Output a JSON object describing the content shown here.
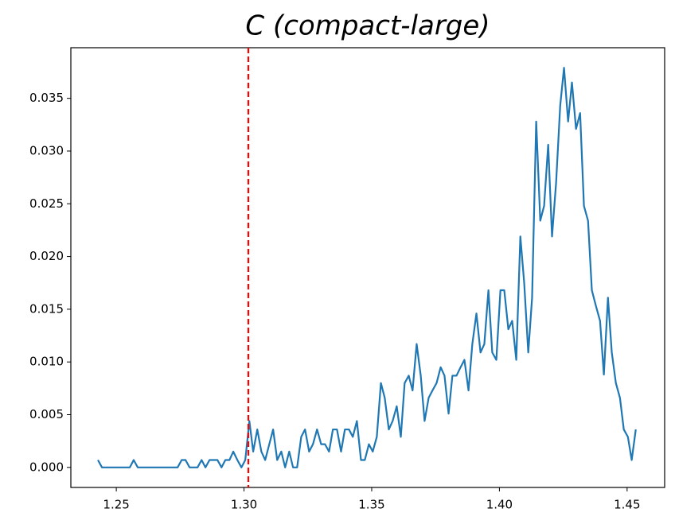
{
  "chart_data": {
    "type": "line",
    "title": "C (compact-large)",
    "x": [
      1.2428,
      1.2444,
      1.2459,
      1.2475,
      1.249,
      1.2506,
      1.2522,
      1.2537,
      1.2553,
      1.2568,
      1.2584,
      1.26,
      1.2615,
      1.2631,
      1.2646,
      1.2662,
      1.2678,
      1.2693,
      1.2709,
      1.2724,
      1.274,
      1.2756,
      1.2771,
      1.2787,
      1.2802,
      1.2818,
      1.2834,
      1.2849,
      1.2865,
      1.288,
      1.2896,
      1.2912,
      1.2927,
      1.2943,
      1.2958,
      1.2974,
      1.299,
      1.3005,
      1.3021,
      1.3036,
      1.3052,
      1.3068,
      1.3083,
      1.3099,
      1.3114,
      1.313,
      1.3146,
      1.3161,
      1.3177,
      1.3192,
      1.3208,
      1.3224,
      1.3239,
      1.3255,
      1.327,
      1.3286,
      1.3302,
      1.3317,
      1.3333,
      1.3348,
      1.3364,
      1.338,
      1.3395,
      1.3411,
      1.3426,
      1.3442,
      1.3458,
      1.3473,
      1.3489,
      1.3504,
      1.352,
      1.3536,
      1.3551,
      1.3567,
      1.3582,
      1.3598,
      1.3614,
      1.3629,
      1.3645,
      1.366,
      1.3676,
      1.3692,
      1.3707,
      1.3723,
      1.3738,
      1.3754,
      1.377,
      1.3785,
      1.3801,
      1.3816,
      1.3832,
      1.3848,
      1.3863,
      1.3879,
      1.3894,
      1.391,
      1.3926,
      1.3941,
      1.3957,
      1.3972,
      1.3988,
      1.4004,
      1.4019,
      1.4035,
      1.405,
      1.4066,
      1.4082,
      1.4097,
      1.4113,
      1.4128,
      1.4144,
      1.416,
      1.4175,
      1.4191,
      1.4206,
      1.4222,
      1.4238,
      1.4253,
      1.4269,
      1.4284,
      1.43,
      1.4316,
      1.4331,
      1.4347,
      1.4362,
      1.4378,
      1.4394,
      1.4409,
      1.4425,
      1.444,
      1.4456,
      1.4472,
      1.4487,
      1.4503,
      1.4518,
      1.4534
    ],
    "values": [
      0.0007,
      0,
      0,
      0,
      0,
      0,
      0,
      0,
      0,
      0.0007,
      0,
      0,
      0,
      0,
      0,
      0,
      0,
      0,
      0,
      0,
      0,
      0.0007,
      0.0007,
      0,
      0,
      0,
      0.0007,
      0,
      0.0007,
      0.0007,
      0.0007,
      0,
      0.0007,
      0.0007,
      0.0015,
      0.0007,
      0,
      0.0007,
      0.0044,
      0.0015,
      0.0036,
      0.0015,
      0.0007,
      0.0022,
      0.0036,
      0.0007,
      0.0015,
      0,
      0.0015,
      0,
      0,
      0.0029,
      0.0036,
      0.0015,
      0.0022,
      0.0036,
      0.0022,
      0.0022,
      0.0015,
      0.0036,
      0.0036,
      0.0015,
      0.0036,
      0.0036,
      0.0029,
      0.0044,
      0.0007,
      0.0007,
      0.0022,
      0.0015,
      0.0029,
      0.008,
      0.0066,
      0.0036,
      0.0044,
      0.0058,
      0.0029,
      0.008,
      0.0087,
      0.0073,
      0.0117,
      0.0087,
      0.0044,
      0.0066,
      0.0073,
      0.008,
      0.0095,
      0.0087,
      0.0051,
      0.0087,
      0.0087,
      0.0095,
      0.0102,
      0.0073,
      0.0117,
      0.0146,
      0.0109,
      0.0117,
      0.0168,
      0.0109,
      0.0102,
      0.0168,
      0.0168,
      0.0131,
      0.0139,
      0.0102,
      0.0219,
      0.0175,
      0.0109,
      0.0161,
      0.0328,
      0.0234,
      0.0248,
      0.0306,
      0.0219,
      0.027,
      0.0343,
      0.0379,
      0.0328,
      0.0365,
      0.0321,
      0.0336,
      0.0248,
      0.0234,
      0.0168,
      0.0153,
      0.0139,
      0.0088,
      0.0161,
      0.0109,
      0.008,
      0.0066,
      0.0036,
      0.0029,
      0.0007,
      0.0036
    ],
    "color": "#1f77b4",
    "vline_x": 1.3017,
    "vline_color": "#ff0000",
    "xlim": [
      1.2322,
      1.4647
    ],
    "xticks": [
      1.25,
      {
        "value": 1.3,
        "label": "1.30"
      },
      1.35,
      {
        "value": 1.4,
        "label": "1.40"
      },
      1.45
    ],
    "ylim": [
      -0.0019,
      0.0398
    ],
    "yticks": [
      {
        "value": 0,
        "label": "0.000"
      },
      0.005,
      {
        "value": 0.01,
        "label": "0.010"
      },
      0.015,
      {
        "value": 0.02,
        "label": "0.020"
      },
      0.025,
      {
        "value": 0.03,
        "label": "0.030"
      },
      0.035
    ]
  }
}
